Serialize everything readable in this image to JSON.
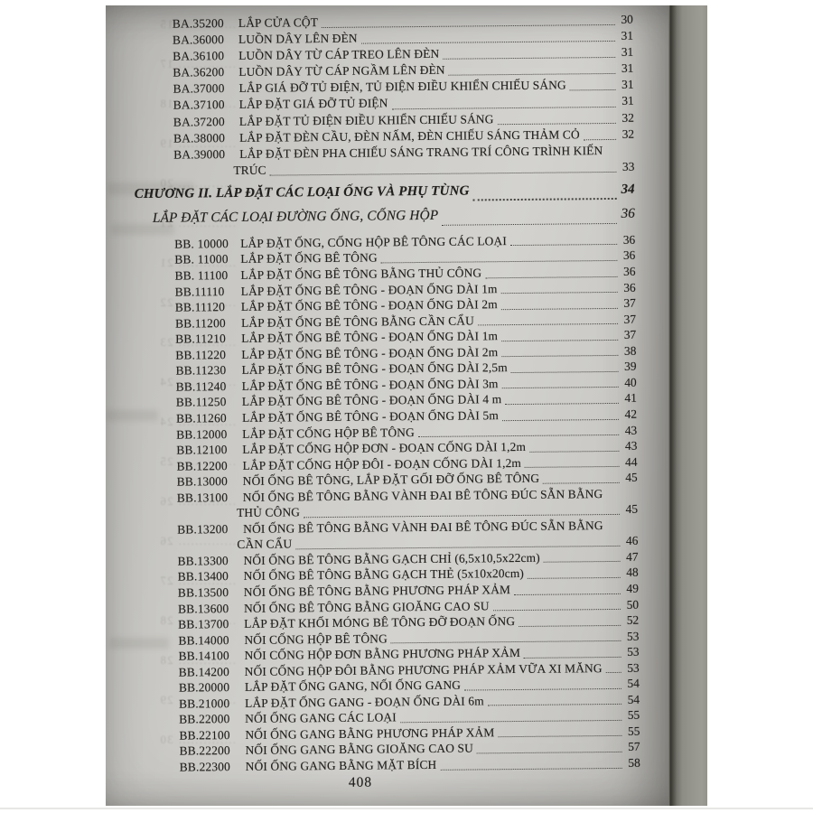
{
  "document": {
    "footer_page_number": "408"
  },
  "toc": {
    "chapter": {
      "label": "CHƯƠNG II. LẮP ĐẶT CÁC LOẠI ỐNG VÀ PHỤ TÙNG",
      "page": "34"
    },
    "section": {
      "label": "LẮP ĐẶT CÁC LOẠI ĐƯỜNG ỐNG, CỐNG HỘP",
      "page": "36"
    },
    "entries_before_chapter": [
      {
        "code": "BA.35200",
        "title": "LẮP CỬA CỘT",
        "page": "30"
      },
      {
        "code": "BA.36000",
        "title": "LUỒN DÂY LÊN ĐÈN",
        "page": "31"
      },
      {
        "code": "BA.36100",
        "title": "LUỒN DÂY TỪ CÁP TREO LÊN ĐÈN",
        "page": "31"
      },
      {
        "code": "BA.36200",
        "title": "LUỒN DÂY TỪ CÁP NGẦM LÊN ĐÈN",
        "page": "31"
      },
      {
        "code": "BA.37000",
        "title": "LẮP GIÁ ĐỠ TỦ ĐIỆN, TỦ ĐIỆN ĐIỀU KHIỂN CHIẾU SÁNG",
        "page": "31"
      },
      {
        "code": "BA.37100",
        "title": "LẮP ĐẶT GIÁ ĐỠ TỦ ĐIỆN",
        "page": "31"
      },
      {
        "code": "BA.37200",
        "title": "LẮP ĐẶT TỦ ĐIỆN ĐIỀU KHIỂN CHIẾU SÁNG",
        "page": "32"
      },
      {
        "code": "BA.38000",
        "title": "LẮP ĐẶT ĐÈN CẦU, ĐÈN NẤM, ĐÈN CHIẾU SÁNG THẢM CỎ",
        "page": "32"
      },
      {
        "code": "BA.39000",
        "title": "LẮP ĐẶT ĐÈN PHA CHIẾU SÁNG TRANG TRÍ CÔNG TRÌNH KIẾN",
        "title_line2": "TRÚC",
        "page": "33"
      }
    ],
    "entries_after_chapter": [
      {
        "code": "BB. 10000",
        "title": "LẮP ĐẶT ỐNG, CỐNG HỘP BÊ TÔNG CÁC LOẠI",
        "page": "36"
      },
      {
        "code": "BB. 11000",
        "title": "LẮP ĐẶT ỐNG BÊ TÔNG",
        "page": "36"
      },
      {
        "code": "BB. 11100",
        "title": "LẮP ĐẶT ỐNG BÊ TÔNG BẰNG THỦ CÔNG",
        "page": "36"
      },
      {
        "code": "BB.11110",
        "title": "LẮP ĐẶT ỐNG BÊ TÔNG - ĐOẠN ỐNG DÀI 1m",
        "page": "36"
      },
      {
        "code": "BB.11120",
        "title": "LẮP ĐẶT ỐNG BÊ TÔNG - ĐOẠN ỐNG DÀI 2m",
        "page": "37"
      },
      {
        "code": "BB.11200",
        "title": "LẮP ĐẶT ỐNG BÊ TÔNG BẰNG CẦN CẨU",
        "page": "37"
      },
      {
        "code": "BB.11210",
        "title": "LẮP ĐẶT ỐNG BÊ TÔNG - ĐOẠN ỐNG DÀI 1m",
        "page": "37"
      },
      {
        "code": "BB.11220",
        "title": "LẮP ĐẶT ỐNG BÊ TÔNG - ĐOẠN ỐNG DÀI 2m",
        "page": "38"
      },
      {
        "code": "BB.11230",
        "title": "LẮP ĐẶT ỐNG BÊ TÔNG - ĐOẠN ỐNG DÀI 2,5m",
        "page": "39"
      },
      {
        "code": "BB.11240",
        "title": "LẮP ĐẶT ỐNG BÊ TÔNG - ĐOẠN ỐNG DÀI 3m",
        "page": "40"
      },
      {
        "code": "BB.11250",
        "title": "LẮP ĐẶT ỐNG BÊ TÔNG - ĐOẠN ỐNG DÀI 4 m",
        "page": "41"
      },
      {
        "code": "BB.11260",
        "title": "LẮP ĐẶT ỐNG BÊ TÔNG - ĐOẠN ỐNG DÀI 5m",
        "page": "42"
      },
      {
        "code": "BB.12000",
        "title": "LẮP ĐẶT CỐNG HỘP BÊ TÔNG",
        "page": "43"
      },
      {
        "code": "BB.12100",
        "title": "LẮP ĐẶT CỐNG HỘP ĐƠN - ĐOẠN CỐNG DÀI 1,2m",
        "page": "43"
      },
      {
        "code": "BB.12200",
        "title": "LẮP ĐẶT CỐNG HỘP ĐÔI - ĐOẠN CỐNG DÀI 1,2m",
        "page": "44"
      },
      {
        "code": "BB.13000",
        "title": "NỐI ỐNG BÊ TÔNG, LẮP ĐẶT GỐI ĐỠ ỐNG BÊ TÔNG",
        "page": "45"
      },
      {
        "code": "BB.13100",
        "title": "NỐI ỐNG BÊ TÔNG BẰNG VÀNH ĐAI BÊ TÔNG ĐÚC SẴN BẰNG",
        "title_line2": "THỦ CÔNG",
        "page": "45"
      },
      {
        "code": "BB.13200",
        "title": "NỐI ỐNG BÊ TÔNG BẰNG VÀNH ĐAI BÊ TÔNG ĐÚC SẴN BẰNG",
        "title_line2": "CẦN CẨU",
        "page": "46"
      },
      {
        "code": "BB.13300",
        "title": "NỐI ỐNG BÊ TÔNG BẰNG GẠCH CHỈ (6,5x10,5x22cm)",
        "page": "47"
      },
      {
        "code": "BB.13400",
        "title": "NỐI ỐNG BÊ TÔNG BẰNG GẠCH THẺ (5x10x20cm)",
        "page": "48"
      },
      {
        "code": "BB.13500",
        "title": "NỐI ỐNG BÊ TÔNG BẰNG PHƯƠNG PHÁP XẢM",
        "page": "49"
      },
      {
        "code": "BB.13600",
        "title": "NỐI ỐNG BÊ TÔNG BẰNG GIOĂNG CAO SU",
        "page": "50"
      },
      {
        "code": "BB.13700",
        "title": "LẮP ĐẶT KHỐI MÓNG BÊ TÔNG ĐỠ ĐOẠN ỐNG",
        "page": "52"
      },
      {
        "code": "BB.14000",
        "title": "NỐI CỐNG HỘP BÊ TÔNG",
        "page": "53"
      },
      {
        "code": "BB.14100",
        "title": "NỐI CỐNG HỘP ĐƠN BẰNG PHƯƠNG PHÁP XẢM",
        "page": "53"
      },
      {
        "code": "BB.14200",
        "title": "NỐI CỐNG HỘP ĐÔI BẰNG PHƯƠNG PHÁP XẢM VỮA XI MĂNG",
        "page": "53"
      },
      {
        "code": "BB.20000",
        "title": "LẮP ĐẶT ỐNG GANG, NỐI ỐNG GANG",
        "page": "54"
      },
      {
        "code": "BB.21000",
        "title": "LẮP ĐẶT ỐNG GANG - ĐOẠN ỐNG DÀI 6m",
        "page": "54"
      },
      {
        "code": "BB.22000",
        "title": "NỐI ỐNG GANG CÁC LOẠI",
        "page": "55"
      },
      {
        "code": "BB.22100",
        "title": "NỐI ỐNG GANG BẰNG PHƯƠNG PHÁP XẢM",
        "page": "55"
      },
      {
        "code": "BB.22200",
        "title": "NỐI ỐNG GANG BẰNG GIOĂNG CAO SU",
        "page": "57"
      },
      {
        "code": "BB.22300",
        "title": "NỐI ỐNG GANG BẰNG MẶT BÍCH",
        "page": "58"
      }
    ]
  },
  "ghost_showthrough": {
    "numbers": [
      "15",
      "17",
      "18",
      "19",
      "20",
      "21",
      "21",
      "22",
      "23",
      "24",
      "24",
      "25",
      "26",
      "26",
      "27",
      "28",
      "28",
      "29",
      "30"
    ]
  }
}
